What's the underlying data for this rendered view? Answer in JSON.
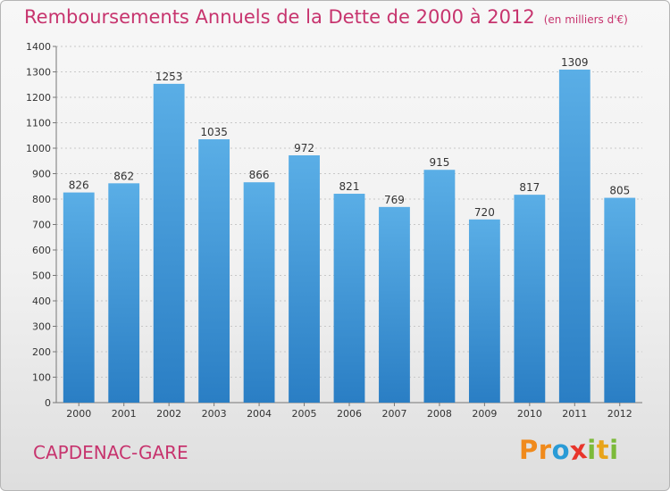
{
  "title": "Remboursements Annuels de la Dette de 2000 à 2012",
  "subtitle": "(en milliers d'€)",
  "commune": "CAPDENAC-GARE",
  "logo": {
    "letters": [
      "P",
      "r",
      "o",
      "x",
      "i",
      "t",
      "i"
    ],
    "colors": [
      "#f08a1c",
      "#f08a1c",
      "#2a9bd6",
      "#e8352b",
      "#7cba3a",
      "#e8a41a",
      "#7cba3a"
    ]
  },
  "colors": {
    "bar_top": "#5aaee6",
    "bar_bottom": "#2a7ec4",
    "title": "#c7346e"
  },
  "chart_data": {
    "type": "bar",
    "title": "Remboursements Annuels de la Dette de 2000 à 2012",
    "subtitle": "(en milliers d'€)",
    "xlabel": "",
    "ylabel": "",
    "categories": [
      "2000",
      "2001",
      "2002",
      "2003",
      "2004",
      "2005",
      "2006",
      "2007",
      "2008",
      "2009",
      "2010",
      "2011",
      "2012"
    ],
    "values": [
      826,
      862,
      1253,
      1035,
      866,
      972,
      821,
      769,
      915,
      720,
      817,
      1309,
      805
    ],
    "ylim": [
      0,
      1400
    ],
    "yticks": [
      0,
      100,
      200,
      300,
      400,
      500,
      600,
      700,
      800,
      900,
      1000,
      1100,
      1200,
      1300,
      1400
    ],
    "grid": true,
    "legend": "none"
  }
}
